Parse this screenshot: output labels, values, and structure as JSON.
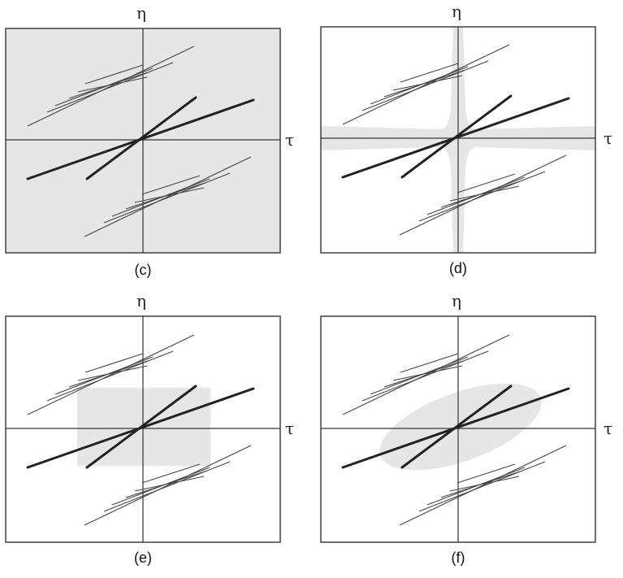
{
  "figure": {
    "axis_labels": {
      "vertical": "η",
      "horizontal": "τ"
    },
    "shade_color": "#e6e6e6",
    "panels": [
      {
        "caption": "(c)",
        "shade": "full"
      },
      {
        "caption": "(d)",
        "shade": "cross"
      },
      {
        "caption": "(e)",
        "shade": "rectangle"
      },
      {
        "caption": "(f)",
        "shade": "ellipse"
      }
    ]
  }
}
